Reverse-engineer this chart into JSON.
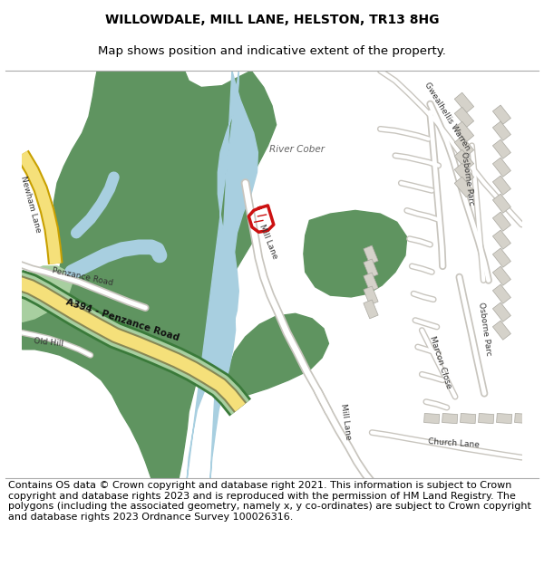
{
  "title_line1": "WILLOWDALE, MILL LANE, HELSTON, TR13 8HG",
  "title_line2": "Map shows position and indicative extent of the property.",
  "footer_text": "Contains OS data © Crown copyright and database right 2021. This information is subject to Crown copyright and database rights 2023 and is reproduced with the permission of HM Land Registry. The polygons (including the associated geometry, namely x, y co-ordinates) are subject to Crown copyright and database rights 2023 Ordnance Survey 100026316.",
  "title_fontsize": 10,
  "title2_fontsize": 9.5,
  "footer_fontsize": 8.0,
  "bg_color": "#ffffff",
  "map_bg_color": "#f5f3ef",
  "green_color": "#5f9460",
  "light_green_color": "#a8cfa0",
  "blue_color": "#a8cfe0",
  "yellow_road_color": "#f5e07a",
  "red_plot_color": "#cc1111",
  "gray_road": "#c8c5be",
  "white": "#ffffff",
  "road_yellow_outline": "#c8a800"
}
